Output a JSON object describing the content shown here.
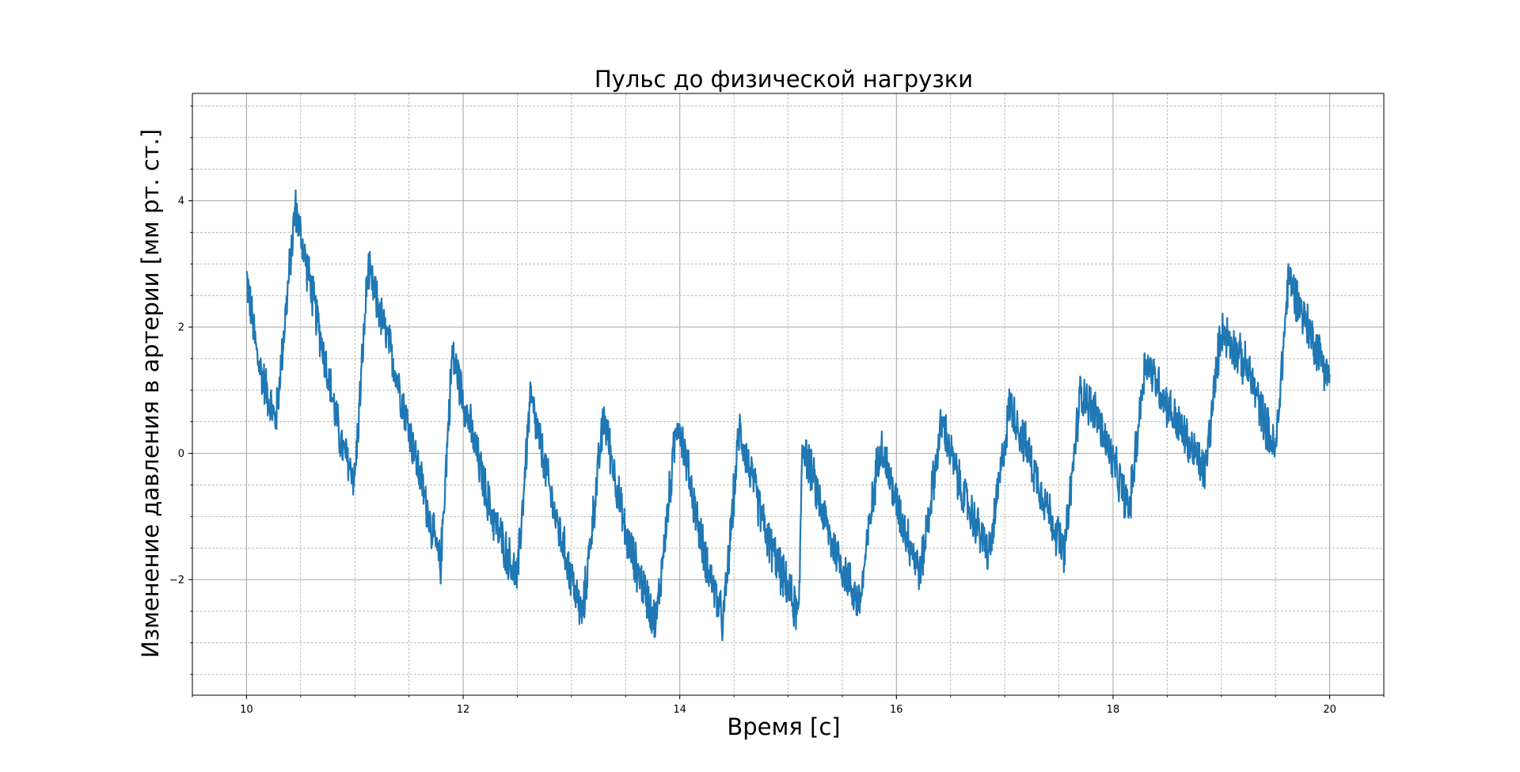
{
  "chart_data": {
    "type": "line",
    "title": "Пульс до физической нагрузки",
    "xlabel": "Время [c]",
    "ylabel": "Изменение давления в артерии [мм рт. ст.]",
    "xlim": [
      9.5,
      20.5
    ],
    "ylim": [
      -3.83,
      5.7
    ],
    "x_ticks": [
      10,
      12,
      14,
      16,
      18,
      20
    ],
    "x_tick_labels": [
      "10",
      "12",
      "14",
      "16",
      "18",
      "20"
    ],
    "y_ticks": [
      -2,
      0,
      2,
      4
    ],
    "y_tick_labels": [
      "−2",
      "0",
      "2",
      "4"
    ],
    "x_minor_step": 0.5,
    "y_minor_step": 0.5,
    "grid": true,
    "legend": "none",
    "series_color": "#1f77b4",
    "noise_amplitude": 0.35,
    "series": [
      {
        "x": [
          10.0,
          10.1,
          10.27,
          10.45,
          10.7,
          10.88,
          11.0,
          11.12,
          11.35,
          11.62,
          11.79,
          11.9,
          12.25,
          12.5,
          12.62,
          12.85,
          13.1,
          13.3,
          13.5,
          13.78,
          13.98,
          14.2,
          14.4,
          14.55,
          14.8,
          15.1,
          15.13,
          15.4,
          15.66,
          15.85,
          16.0,
          16.22,
          16.42,
          16.6,
          16.86,
          17.05,
          17.3,
          17.55,
          17.7,
          17.85,
          18.15,
          18.3,
          18.55,
          18.85,
          19.0,
          19.25,
          19.5,
          19.62,
          19.8,
          20.0
        ],
        "y": [
          2.8,
          1.5,
          0.5,
          3.9,
          1.7,
          0.1,
          -0.4,
          2.9,
          1.5,
          -0.5,
          -1.8,
          1.6,
          -0.9,
          -2.0,
          0.9,
          -1.0,
          -2.6,
          0.6,
          -1.3,
          -2.7,
          0.6,
          -1.4,
          -2.7,
          0.4,
          -1.3,
          -2.6,
          0.2,
          -1.4,
          -2.4,
          0.2,
          -0.8,
          -1.9,
          0.5,
          -0.6,
          -1.6,
          0.8,
          -0.4,
          -1.6,
          1.0,
          0.6,
          -0.9,
          1.5,
          0.6,
          -0.3,
          2.0,
          1.3,
          0.0,
          2.8,
          2.0,
          1.2
        ]
      }
    ]
  }
}
